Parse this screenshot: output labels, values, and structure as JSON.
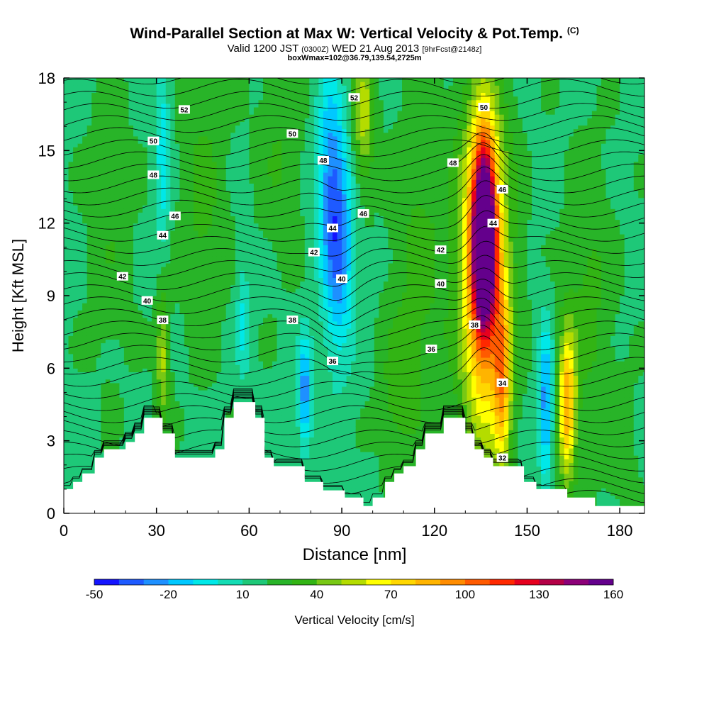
{
  "header": {
    "title": "Wind-Parallel Section at Max W: Vertical Velocity & Pot.Temp.",
    "title_unit": "(C)",
    "subtitle_a": "Valid 1200 JST",
    "subtitle_b": "(0300Z)",
    "subtitle_c": "WED 21 Aug 2013",
    "subtitle_d": "[9hrFcst@2148z]",
    "subtitle2": "boxWmax=102@36.79,139.54,2725m"
  },
  "colorbar": {
    "label": "Vertical Velocity [cm/s]",
    "tick_labels": [
      "-50",
      "-20",
      "10",
      "40",
      "70",
      "100",
      "130",
      "160"
    ],
    "bin_colors": [
      "#1414ff",
      "#1e5aff",
      "#1e90ff",
      "#00c8ff",
      "#00e8e8",
      "#14dcb4",
      "#1ec878",
      "#28b428",
      "#32b414",
      "#78c814",
      "#b4dc00",
      "#ffff00",
      "#ffd700",
      "#ffb400",
      "#ff8c00",
      "#ff5a00",
      "#ff2800",
      "#e6001e",
      "#b40046",
      "#8c0078",
      "#64008c"
    ]
  },
  "chart_data": {
    "type": "heatmap",
    "xlabel": "Distance [nm]",
    "ylabel": "Height [Kft MSL]",
    "xlim": [
      0,
      188
    ],
    "ylim": [
      0,
      18
    ],
    "xticks": [
      0,
      30,
      60,
      90,
      120,
      150,
      180
    ],
    "yticks": [
      0,
      3,
      6,
      9,
      12,
      15,
      18
    ],
    "terrain_kft": [
      [
        0,
        1.0
      ],
      [
        3,
        1.0
      ],
      [
        3,
        1.3
      ],
      [
        6,
        1.3
      ],
      [
        6,
        1.65
      ],
      [
        10,
        1.65
      ],
      [
        10,
        2.3
      ],
      [
        13,
        2.3
      ],
      [
        13,
        2.65
      ],
      [
        20,
        2.65
      ],
      [
        20,
        2.95
      ],
      [
        23,
        2.95
      ],
      [
        23,
        3.3
      ],
      [
        26,
        3.3
      ],
      [
        26,
        3.95
      ],
      [
        32,
        3.95
      ],
      [
        32,
        3.3
      ],
      [
        36,
        3.3
      ],
      [
        36,
        2.3
      ],
      [
        49,
        2.3
      ],
      [
        49,
        2.65
      ],
      [
        52,
        2.65
      ],
      [
        52,
        3.95
      ],
      [
        55,
        3.95
      ],
      [
        55,
        4.6
      ],
      [
        62,
        4.6
      ],
      [
        62,
        3.95
      ],
      [
        65,
        3.95
      ],
      [
        65,
        2.3
      ],
      [
        68,
        2.3
      ],
      [
        68,
        1.95
      ],
      [
        78,
        1.95
      ],
      [
        78,
        1.3
      ],
      [
        84,
        1.3
      ],
      [
        84,
        0.95
      ],
      [
        91,
        0.95
      ],
      [
        91,
        0.65
      ],
      [
        97,
        0.65
      ],
      [
        97,
        0.3
      ],
      [
        100,
        0.3
      ],
      [
        100,
        0.65
      ],
      [
        104,
        0.65
      ],
      [
        104,
        1.3
      ],
      [
        107,
        1.3
      ],
      [
        107,
        1.65
      ],
      [
        110,
        1.65
      ],
      [
        110,
        1.95
      ],
      [
        114,
        1.95
      ],
      [
        114,
        2.65
      ],
      [
        117,
        2.65
      ],
      [
        117,
        3.3
      ],
      [
        123,
        3.3
      ],
      [
        123,
        3.95
      ],
      [
        130,
        3.95
      ],
      [
        130,
        3.3
      ],
      [
        133,
        3.3
      ],
      [
        133,
        2.65
      ],
      [
        136,
        2.65
      ],
      [
        136,
        2.3
      ],
      [
        139,
        2.3
      ],
      [
        139,
        1.95
      ],
      [
        149,
        1.95
      ],
      [
        149,
        1.3
      ],
      [
        153,
        1.3
      ],
      [
        153,
        1.0
      ],
      [
        163,
        1.0
      ],
      [
        163,
        0.65
      ],
      [
        172,
        0.65
      ],
      [
        172,
        0.3
      ],
      [
        188,
        0.3
      ]
    ],
    "velocity_features_cm_s": [
      {
        "x": 136,
        "z": 11.5,
        "w": 150,
        "sx": 2.5,
        "sz": 2.6
      },
      {
        "x": 136,
        "z": 10.0,
        "w": 80,
        "sx": 5.5,
        "sz": 5.0
      },
      {
        "x": 142,
        "z": 5.5,
        "w": 55,
        "sx": 2.0,
        "sz": 2.5
      },
      {
        "x": 163,
        "z": 4.5,
        "w": 70,
        "sx": 2.0,
        "sz": 2.2
      },
      {
        "x": 89,
        "z": 11.0,
        "w": -45,
        "sx": 3.5,
        "sz": 3.2
      },
      {
        "x": 86,
        "z": 14.5,
        "w": -30,
        "sx": 3.0,
        "sz": 3.0
      },
      {
        "x": 78,
        "z": 5.0,
        "w": -45,
        "sx": 1.6,
        "sz": 1.6
      },
      {
        "x": 156,
        "z": 4.5,
        "w": -45,
        "sx": 1.6,
        "sz": 2.2
      },
      {
        "x": 32,
        "z": 15.0,
        "w": -25,
        "sx": 1.6,
        "sz": 3.0
      },
      {
        "x": 58,
        "z": 8.0,
        "w": -20,
        "sx": 1.5,
        "sz": 1.8
      },
      {
        "x": 97,
        "z": 16.5,
        "w": 38,
        "sx": 2.5,
        "sz": 2.0
      },
      {
        "x": 32,
        "z": 6.5,
        "w": 35,
        "sx": 1.5,
        "sz": 2.0
      },
      {
        "x": 45,
        "z": 13.0,
        "w": 15,
        "sx": 5.0,
        "sz": 4.0
      },
      {
        "x": 115,
        "z": 10.0,
        "w": 15,
        "sx": 6.0,
        "sz": 5.0
      },
      {
        "x": 70,
        "z": 15.0,
        "w": 12,
        "sx": 5.0,
        "sz": 3.0
      },
      {
        "x": 170,
        "z": 9.0,
        "w": 15,
        "sx": 5.0,
        "sz": 4.0
      },
      {
        "x": 108,
        "z": 5.0,
        "w": 15,
        "sx": 4.0,
        "sz": 2.0
      },
      {
        "x": 15,
        "z": 12.0,
        "w": 10,
        "sx": 5.0,
        "sz": 4.0
      },
      {
        "x": 180,
        "z": 3.0,
        "w": 8,
        "sx": 4.0,
        "sz": 2.0
      }
    ],
    "contour_labels": [
      {
        "text": "52",
        "x": 39,
        "z": 16.7
      },
      {
        "text": "50",
        "x": 29,
        "z": 15.4
      },
      {
        "text": "48",
        "x": 29,
        "z": 14.0
      },
      {
        "text": "46",
        "x": 36,
        "z": 12.3
      },
      {
        "text": "44",
        "x": 32,
        "z": 11.5
      },
      {
        "text": "42",
        "x": 19,
        "z": 9.8
      },
      {
        "text": "40",
        "x": 27,
        "z": 8.8
      },
      {
        "text": "38",
        "x": 32,
        "z": 8.0
      },
      {
        "text": "50",
        "x": 74,
        "z": 15.7
      },
      {
        "text": "52",
        "x": 94,
        "z": 17.2
      },
      {
        "text": "48",
        "x": 84,
        "z": 14.6
      },
      {
        "text": "46",
        "x": 97,
        "z": 12.4
      },
      {
        "text": "44",
        "x": 87,
        "z": 11.8
      },
      {
        "text": "42",
        "x": 81,
        "z": 10.8
      },
      {
        "text": "40",
        "x": 90,
        "z": 9.7
      },
      {
        "text": "38",
        "x": 74,
        "z": 8.0
      },
      {
        "text": "36",
        "x": 87,
        "z": 6.3
      },
      {
        "text": "50",
        "x": 136,
        "z": 16.8
      },
      {
        "text": "48",
        "x": 126,
        "z": 14.5
      },
      {
        "text": "46",
        "x": 142,
        "z": 13.4
      },
      {
        "text": "44",
        "x": 139,
        "z": 12.0
      },
      {
        "text": "42",
        "x": 122,
        "z": 10.9
      },
      {
        "text": "40",
        "x": 122,
        "z": 9.5
      },
      {
        "text": "38",
        "x": 133,
        "z": 7.8
      },
      {
        "text": "36",
        "x": 119,
        "z": 6.8
      },
      {
        "text": "34",
        "x": 142,
        "z": 5.4
      },
      {
        "text": "32",
        "x": 142,
        "z": 2.3
      }
    ]
  }
}
